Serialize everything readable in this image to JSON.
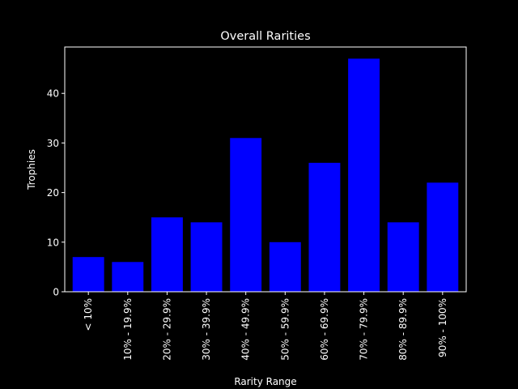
{
  "chart_data": {
    "type": "bar",
    "title": "Overall Rarities",
    "xlabel": "Rarity Range",
    "ylabel": "Trophies",
    "categories": [
      "< 10%",
      "10% - 19.9%",
      "20% - 29.9%",
      "30% - 39.9%",
      "40% - 49.9%",
      "50% - 59.9%",
      "60% - 69.9%",
      "70% - 79.9%",
      "80% - 89.9%",
      "90% - 100%"
    ],
    "values": [
      7,
      6,
      15,
      14,
      31,
      10,
      26,
      47,
      14,
      22
    ],
    "ylim": [
      0,
      49.35
    ],
    "yticks": [
      0,
      10,
      20,
      30,
      40
    ],
    "grid": false,
    "colors": {
      "background": "#000000",
      "bar": "#0000ff",
      "text": "#ffffff",
      "axis": "#ffffff"
    }
  }
}
